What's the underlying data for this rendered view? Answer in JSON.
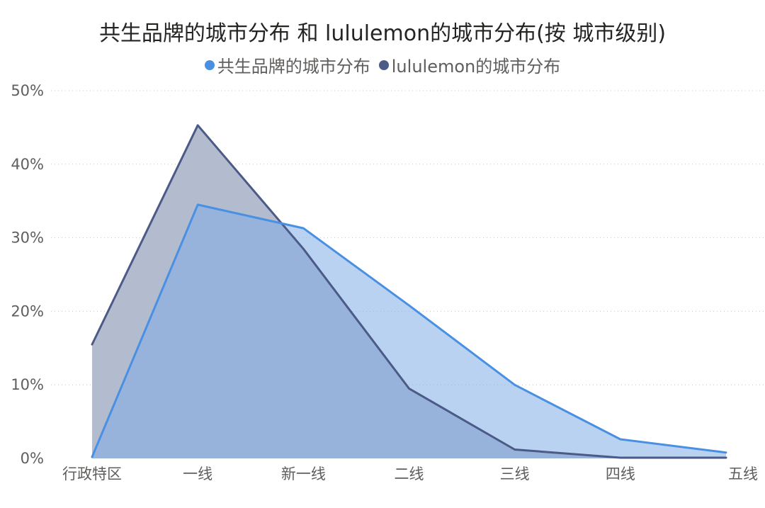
{
  "chart_data": {
    "type": "area",
    "title": "共生品牌的城市分布 和 lululemon的城市分布(按 城市级别)",
    "xlabel": "",
    "ylabel": "",
    "categories": [
      "行政特区",
      "一线",
      "新一线",
      "二线",
      "三线",
      "四线",
      "五线"
    ],
    "y_ticks": [
      "0%",
      "10%",
      "20%",
      "30%",
      "40%",
      "50%"
    ],
    "y_tick_values": [
      0,
      10,
      20,
      30,
      40,
      50
    ],
    "ylim": [
      0,
      50
    ],
    "grid": true,
    "legend_position": "top-center",
    "series": [
      {
        "name": "lululemon的城市分布",
        "values": [
          15.5,
          45.3,
          28.5,
          9.5,
          1.2,
          0.1,
          0.1
        ],
        "color": "#4b5a86",
        "fill": "#b3bbcf"
      },
      {
        "name": "共生品牌的城市分布",
        "values": [
          0.2,
          34.5,
          31.3,
          20.8,
          10.0,
          2.6,
          0.8
        ],
        "color": "#4a90e2",
        "fill": "#7fade6"
      }
    ]
  }
}
